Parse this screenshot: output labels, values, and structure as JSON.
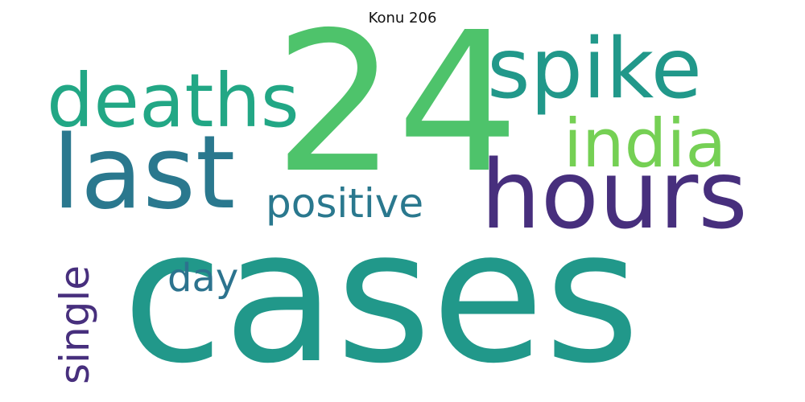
{
  "chart_data": {
    "type": "wordcloud",
    "title": "Konu 206",
    "words": [
      {
        "text": "cases",
        "weight": 1.0,
        "color": "#21988a",
        "orientation": "horizontal"
      },
      {
        "text": "24",
        "weight": 0.92,
        "color": "#4ec36b",
        "orientation": "horizontal"
      },
      {
        "text": "hours",
        "weight": 0.58,
        "color": "#472f7d",
        "orientation": "horizontal"
      },
      {
        "text": "last",
        "weight": 0.56,
        "color": "#2a788e",
        "orientation": "horizontal"
      },
      {
        "text": "spike",
        "weight": 0.5,
        "color": "#21988a",
        "orientation": "horizontal"
      },
      {
        "text": "deaths",
        "weight": 0.44,
        "color": "#22a785",
        "orientation": "horizontal"
      },
      {
        "text": "india",
        "weight": 0.4,
        "color": "#75d054",
        "orientation": "horizontal"
      },
      {
        "text": "positive",
        "weight": 0.25,
        "color": "#2a788e",
        "orientation": "horizontal"
      },
      {
        "text": "single",
        "weight": 0.25,
        "color": "#472f7d",
        "orientation": "vertical"
      },
      {
        "text": "day",
        "weight": 0.23,
        "color": "#2c738e",
        "orientation": "horizontal"
      }
    ]
  }
}
